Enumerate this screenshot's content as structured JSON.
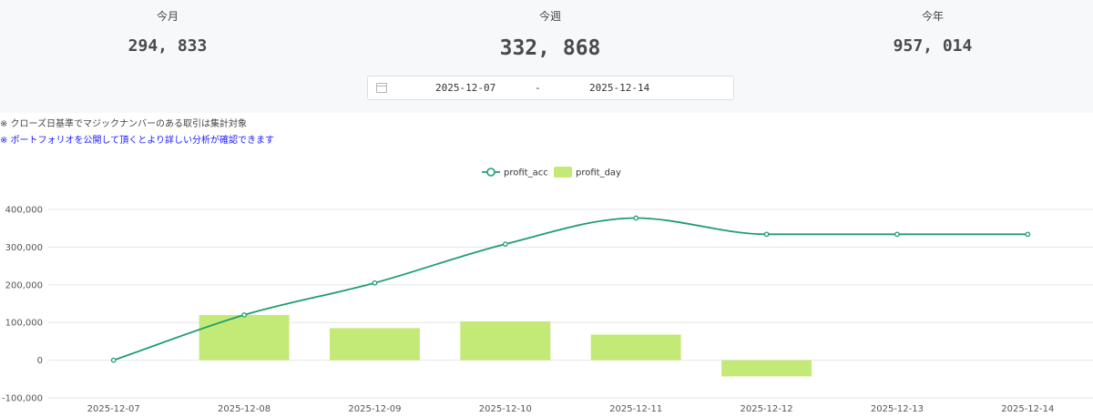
{
  "summary": {
    "month_label": "今月",
    "month_value": "294, 833",
    "week_label": "今週",
    "week_value": "332, 868",
    "year_label": "今年",
    "year_value": "957, 014"
  },
  "date_range": {
    "start": "2025-12-07",
    "separator": "-",
    "end": "2025-12-14"
  },
  "notes": {
    "note_1": "※ クローズ日基準でマジックナンバーのある取引は集計対象",
    "note_2": "※ ポートフォリオを公開して頂くとより詳しい分析が確認できます"
  },
  "colors": {
    "line": "#1f9d6e",
    "bar": "#c3ea77",
    "grid": "#e6e6e6"
  },
  "chart_data": {
    "type": "bar",
    "title": "",
    "xlabel": "",
    "ylabel": "",
    "categories": [
      "2025-12-07",
      "2025-12-08",
      "2025-12-09",
      "2025-12-10",
      "2025-12-11",
      "2025-12-12",
      "2025-12-13",
      "2025-12-14"
    ],
    "ylim": [
      -100000,
      400000
    ],
    "y_ticks": [
      "400,000",
      "300,000",
      "200,000",
      "100,000",
      "0",
      "-100,000"
    ],
    "legend_position": "top-center",
    "series": [
      {
        "name": "profit_acc",
        "type": "line",
        "smooth": true,
        "values": [
          0,
          120000,
          205000,
          308000,
          377000,
          334000,
          334000,
          334000
        ]
      },
      {
        "name": "profit_day",
        "type": "bar",
        "values": [
          0,
          120000,
          85000,
          103000,
          68000,
          -43000,
          0,
          0
        ]
      }
    ]
  }
}
